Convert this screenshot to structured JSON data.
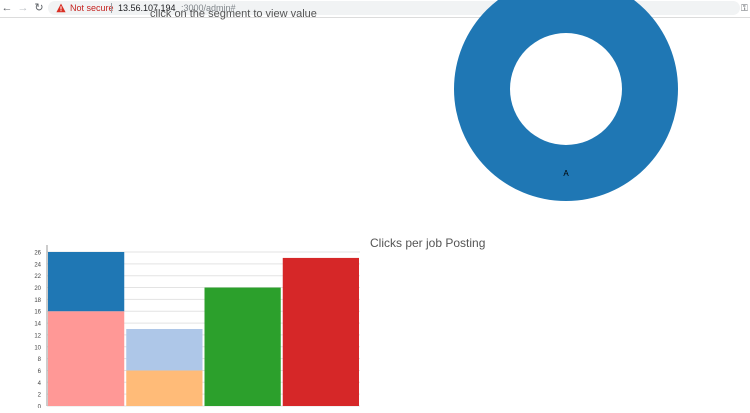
{
  "browser": {
    "security_label": "Not secure",
    "url_host": "13.56.107.194",
    "url_path": ":3000/admin#"
  },
  "page": {
    "clipped_text": "click on the segment to view value",
    "bar_chart_title": "Clicks per job Posting"
  },
  "colors": {
    "donut": "#1f77b4",
    "warning": "#d93025"
  },
  "chart_data": [
    {
      "type": "pie",
      "donut": true,
      "labels": [
        "A"
      ],
      "values": [
        1
      ],
      "colors": [
        "#1f77b4"
      ]
    },
    {
      "type": "bar",
      "stacked": true,
      "title": "Clicks per job Posting",
      "categories": [
        "",
        "",
        "",
        ""
      ],
      "ylim": [
        0,
        26
      ],
      "yticks": [
        0,
        2,
        4,
        6,
        8,
        10,
        12,
        14,
        16,
        18,
        20,
        22,
        24,
        26
      ],
      "grid": true,
      "segments": [
        {
          "bar": 0,
          "from": 0,
          "to": 16,
          "color": "#ff9896"
        },
        {
          "bar": 0,
          "from": 16,
          "to": 26,
          "color": "#1f77b4"
        },
        {
          "bar": 1,
          "from": 0,
          "to": 6,
          "color": "#ffbb78"
        },
        {
          "bar": 1,
          "from": 6,
          "to": 13,
          "color": "#aec7e8"
        },
        {
          "bar": 2,
          "from": 0,
          "to": 20,
          "color": "#2ca02c"
        },
        {
          "bar": 3,
          "from": 0,
          "to": 25,
          "color": "#d62728"
        }
      ]
    }
  ]
}
